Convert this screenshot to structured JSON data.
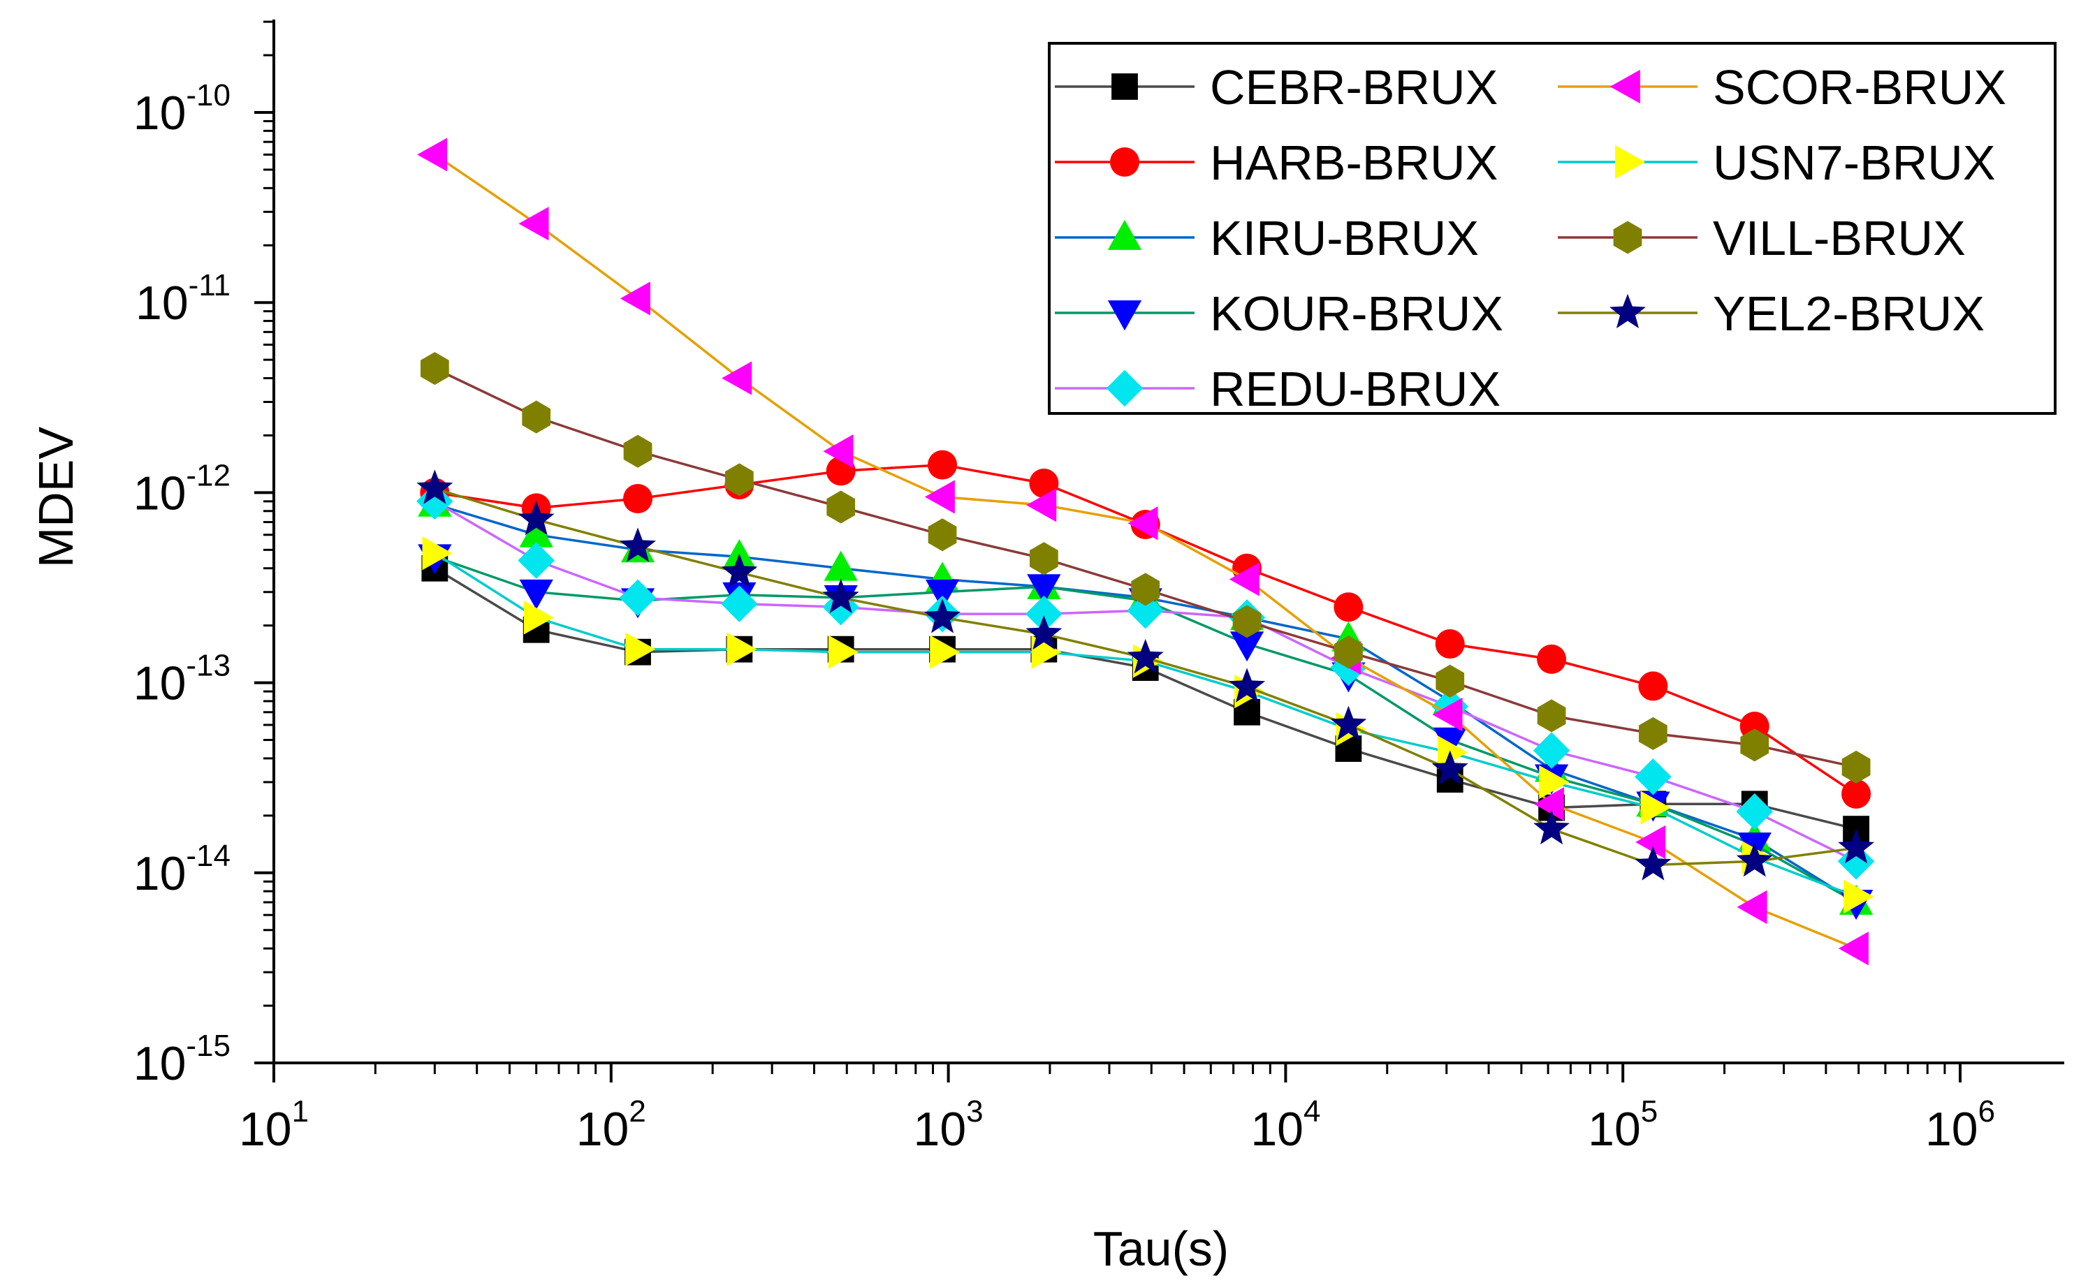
{
  "chart_data": {
    "type": "line",
    "xscale": "log",
    "yscale": "log",
    "xlabel": "Tau(s)",
    "ylabel": "MDEV",
    "xlim": [
      10,
      2000000
    ],
    "ylim": [
      1e-15,
      4.5e-10
    ],
    "x_ticks": [
      {
        "value": 10,
        "base": "10",
        "exp": "1"
      },
      {
        "value": 100,
        "base": "10",
        "exp": "2"
      },
      {
        "value": 1000,
        "base": "10",
        "exp": "3"
      },
      {
        "value": 10000,
        "base": "10",
        "exp": "4"
      },
      {
        "value": 100000,
        "base": "10",
        "exp": "5"
      },
      {
        "value": 1000000,
        "base": "10",
        "exp": "6"
      }
    ],
    "y_ticks": [
      {
        "value": 1e-15,
        "base": "10",
        "exp": "-15"
      },
      {
        "value": 1e-14,
        "base": "10",
        "exp": "-14"
      },
      {
        "value": 1e-13,
        "base": "10",
        "exp": "-13"
      },
      {
        "value": 1e-12,
        "base": "10",
        "exp": "-12"
      },
      {
        "value": 1e-11,
        "base": "10",
        "exp": "-11"
      },
      {
        "value": 1e-10,
        "base": "10",
        "exp": "-10"
      }
    ],
    "x": [
      30,
      60,
      120,
      240,
      480,
      960,
      1920,
      3840,
      7680,
      15360,
      30720,
      61440,
      122880,
      245760,
      491520
    ],
    "series": [
      {
        "name": "CEBR-BRUX",
        "color": "#000000",
        "line_color": "#4a4a4a",
        "marker": "square",
        "values": [
          4e-13,
          1.9e-13,
          1.45e-13,
          1.5e-13,
          1.5e-13,
          1.5e-13,
          1.5e-13,
          1.2e-13,
          7e-14,
          4.5e-14,
          3.1e-14,
          2.2e-14,
          2.3e-14,
          2.3e-14,
          1.7e-14
        ]
      },
      {
        "name": "HARB-BRUX",
        "color": "#ff0000",
        "line_color": "#ff0000",
        "marker": "circle",
        "values": [
          1e-12,
          8.3e-13,
          9.3e-13,
          1.1e-12,
          1.3e-12,
          1.4e-12,
          1.12e-12,
          6.8e-13,
          4e-13,
          2.5e-13,
          1.6e-13,
          1.33e-13,
          9.6e-14,
          5.9e-14,
          2.6e-14
        ]
      },
      {
        "name": "KIRU-BRUX",
        "color": "#00ee00",
        "line_color": "#0066cc",
        "marker": "triangle-up",
        "values": [
          8.7e-13,
          6e-13,
          5e-13,
          4.6e-13,
          4e-13,
          3.5e-13,
          3.2e-13,
          2.8e-13,
          2.2e-13,
          1.7e-13,
          8e-14,
          3.5e-14,
          2.3e-14,
          1.5e-14,
          7e-15
        ]
      },
      {
        "name": "KOUR-BRUX",
        "color": "#0000ff",
        "line_color": "#009966",
        "marker": "triangle-down",
        "values": [
          4.6e-13,
          3e-13,
          2.7e-13,
          2.9e-13,
          2.8e-13,
          3e-13,
          3.2e-13,
          2.7e-13,
          1.6e-13,
          1.1e-13,
          5e-14,
          3.2e-14,
          2.3e-14,
          1.4e-14,
          7e-15
        ]
      },
      {
        "name": "REDU-BRUX",
        "color": "#00e5ee",
        "line_color": "#cc66ff",
        "marker": "diamond",
        "values": [
          9e-13,
          4.4e-13,
          2.8e-13,
          2.6e-13,
          2.5e-13,
          2.3e-13,
          2.3e-13,
          2.4e-13,
          2.2e-13,
          1.2e-13,
          7.5e-14,
          4.4e-14,
          3.2e-14,
          2.1e-14,
          1.15e-14
        ]
      },
      {
        "name": "SCOR-BRUX",
        "color": "#ff00ff",
        "line_color": "#e6a000",
        "marker": "triangle-left",
        "values": [
          6e-11,
          2.6e-11,
          1.05e-11,
          4e-12,
          1.65e-12,
          9.5e-13,
          8.6e-13,
          6.9e-13,
          3.5e-13,
          1.35e-13,
          6.8e-14,
          2.3e-14,
          1.45e-14,
          6.6e-15,
          4e-15
        ]
      },
      {
        "name": "USN7-BRUX",
        "color": "#ffff00",
        "line_color": "#00cccc",
        "marker": "triangle-right",
        "values": [
          4.8e-13,
          2.2e-13,
          1.5e-13,
          1.5e-13,
          1.45e-13,
          1.45e-13,
          1.45e-13,
          1.3e-13,
          9e-14,
          5.7e-14,
          4.3e-14,
          3e-14,
          2.2e-14,
          1.2e-14,
          7.5e-15
        ]
      },
      {
        "name": "VILL-BRUX",
        "color": "#808000",
        "line_color": "#8b3a3a",
        "marker": "hexagon",
        "values": [
          4.5e-12,
          2.5e-12,
          1.65e-12,
          1.17e-12,
          8.4e-13,
          6e-13,
          4.5e-13,
          3.1e-13,
          2.1e-13,
          1.45e-13,
          1.02e-13,
          6.7e-14,
          5.4e-14,
          4.7e-14,
          3.6e-14
        ]
      },
      {
        "name": "YEL2-BRUX",
        "color": "#000080",
        "line_color": "#808000",
        "marker": "star",
        "values": [
          1.05e-12,
          7.2e-13,
          5.2e-13,
          3.8e-13,
          2.8e-13,
          2.2e-13,
          1.8e-13,
          1.35e-13,
          9.5e-14,
          6e-14,
          3.5e-14,
          1.7e-14,
          1.1e-14,
          1.15e-14,
          1.35e-14
        ]
      }
    ],
    "legend": {
      "placement": "top-right",
      "columns": [
        [
          "CEBR-BRUX",
          "HARB-BRUX",
          "KIRU-BRUX",
          "KOUR-BRUX",
          "REDU-BRUX"
        ],
        [
          "SCOR-BRUX",
          "USN7-BRUX",
          "VILL-BRUX",
          "YEL2-BRUX"
        ]
      ]
    }
  }
}
